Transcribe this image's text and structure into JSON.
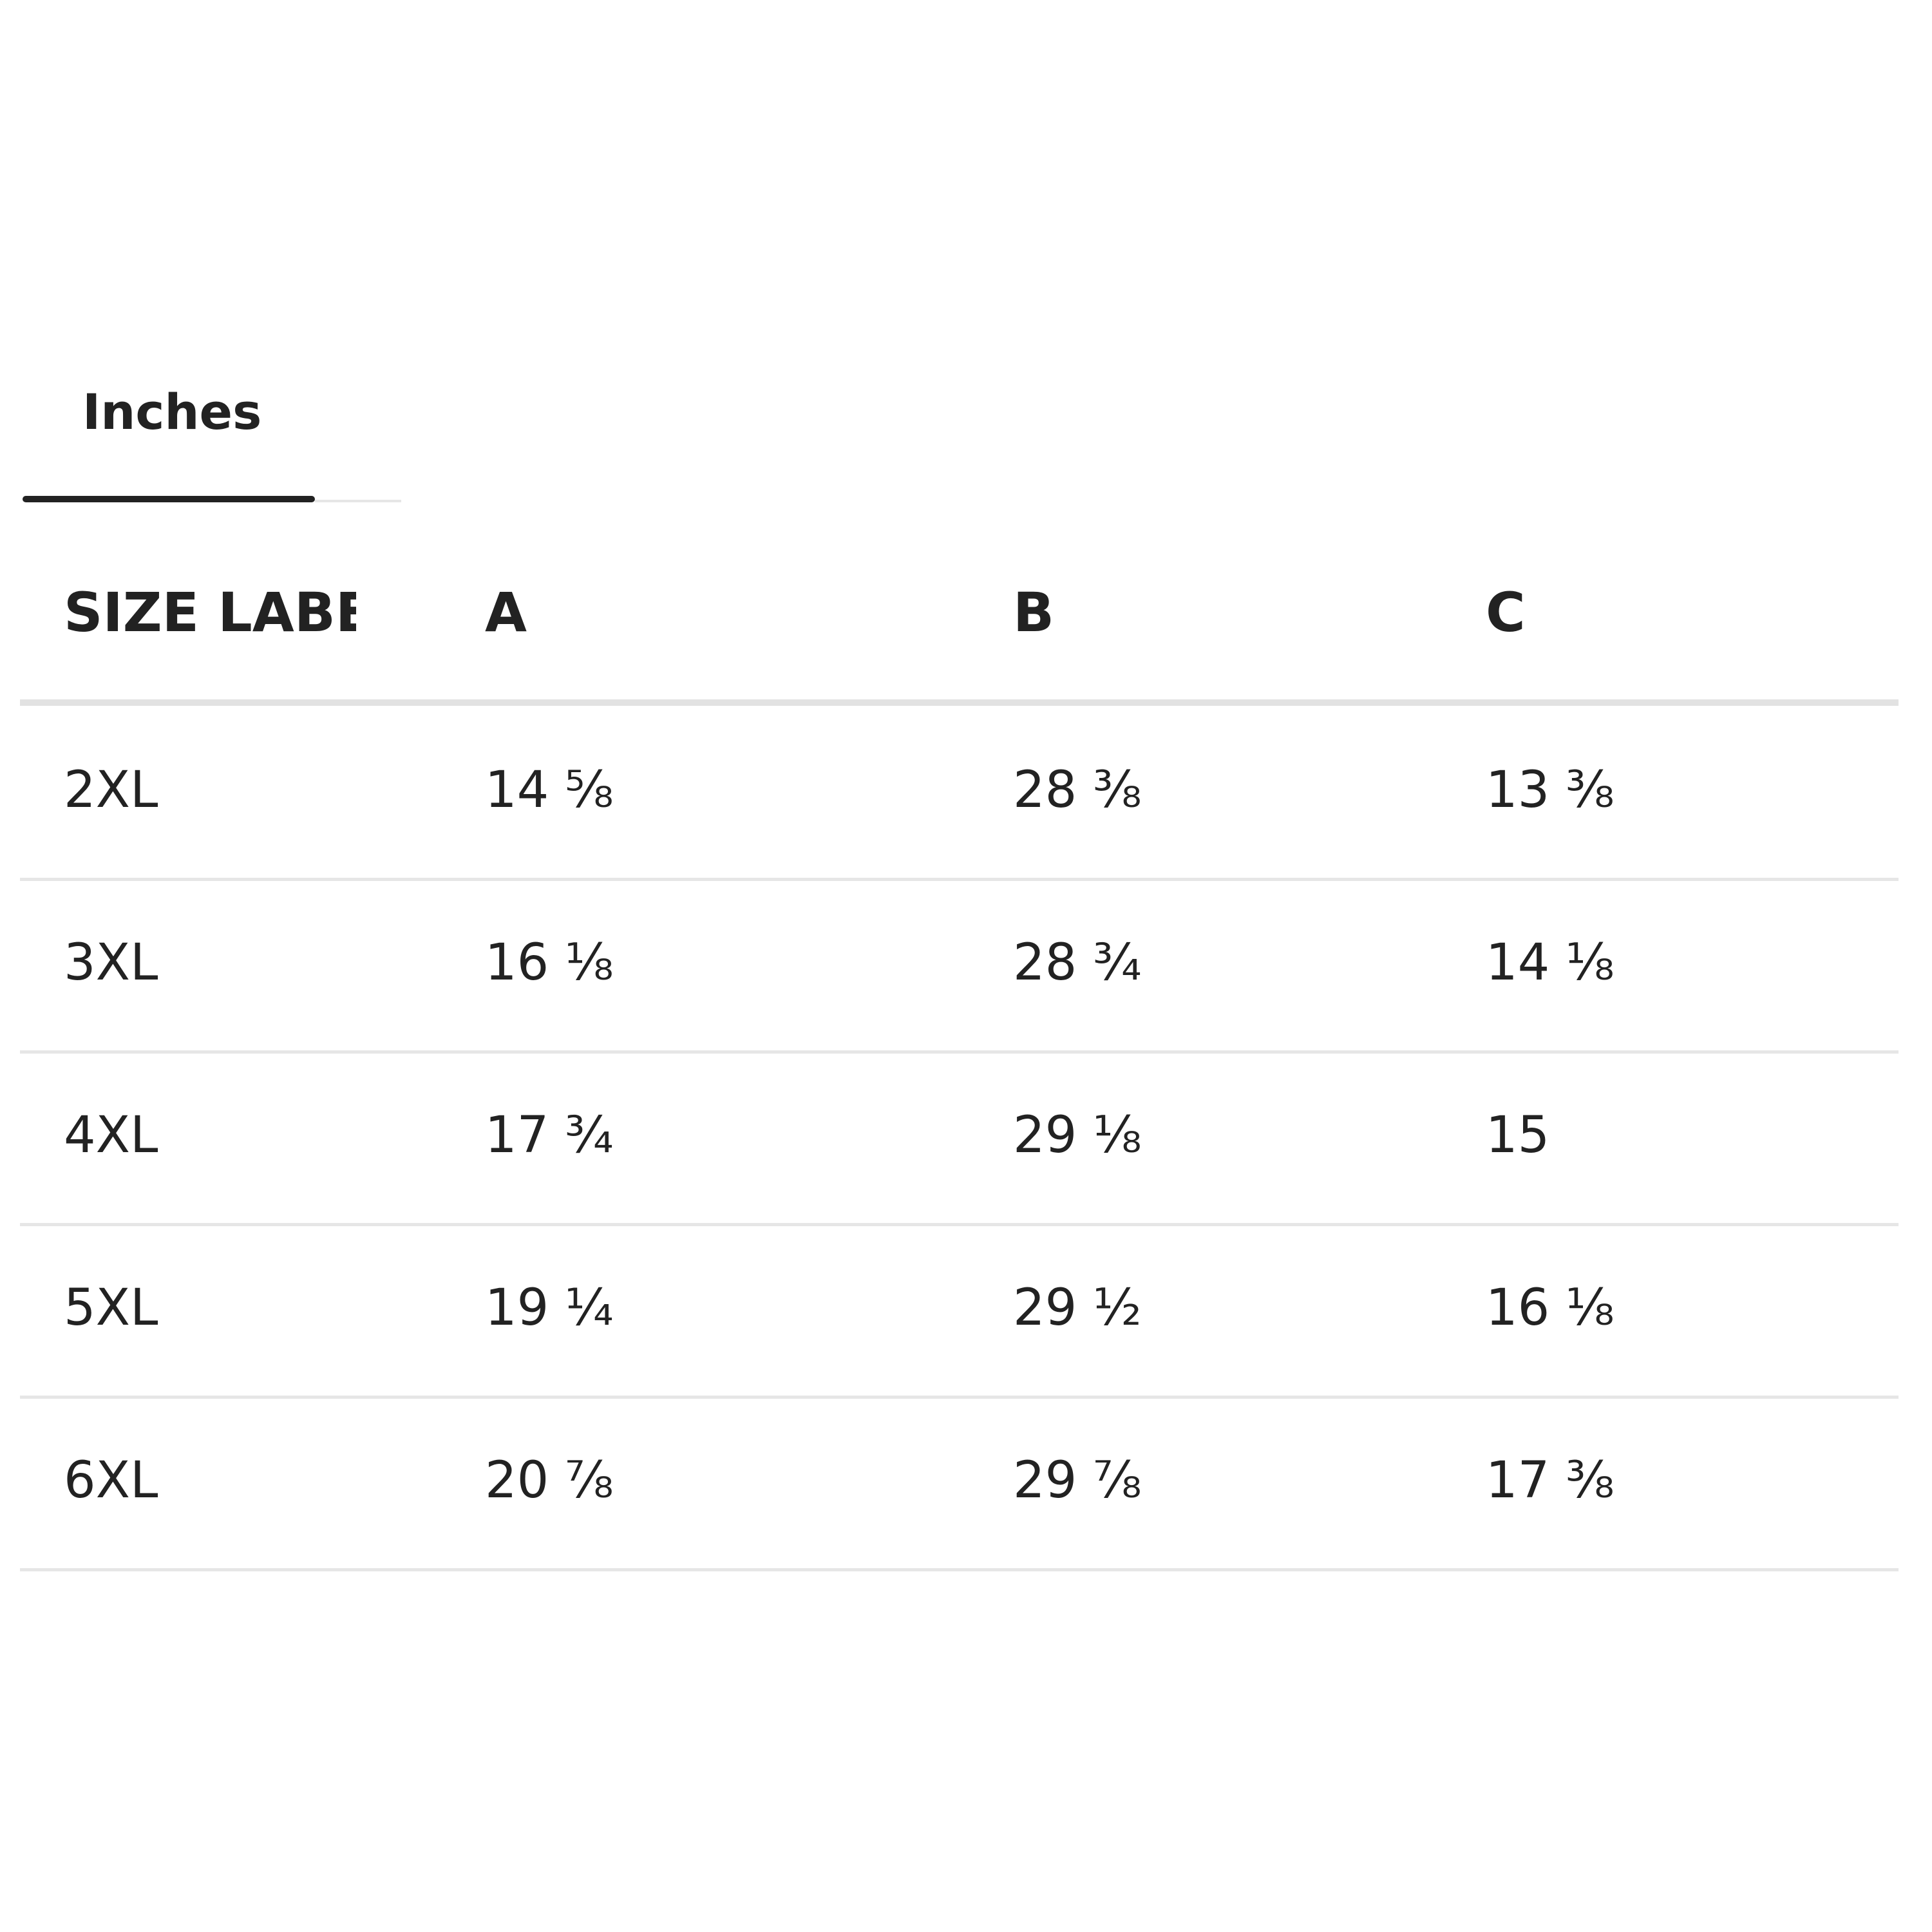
{
  "tabs": [
    "Inches"
  ],
  "table": {
    "header": [
      "SIZE LABEL",
      "A",
      "B",
      "C"
    ],
    "rows": [
      [
        "2XL",
        "14 ⅝",
        "28 ⅜",
        "13 ⅜"
      ],
      [
        "3XL",
        "16 ⅛",
        "28 ¾",
        "14 ⅛"
      ],
      [
        "4XL",
        "17 ¾",
        "29 ⅛",
        "15"
      ],
      [
        "5XL",
        "19 ¼",
        "29 ½",
        "16 ⅛"
      ],
      [
        "6XL",
        "20 ⅞",
        "29 ⅞",
        "17 ⅜"
      ]
    ]
  }
}
